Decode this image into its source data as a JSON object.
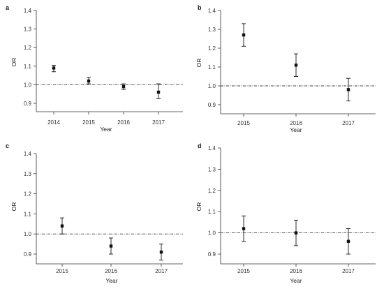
{
  "chart_data": [
    {
      "panel": "a",
      "type": "scatter",
      "xlabel": "Year",
      "ylabel": "OR",
      "categories": [
        "2014",
        "2015",
        "2016",
        "2017"
      ],
      "values": [
        1.09,
        1.02,
        0.99,
        0.96
      ],
      "ci_low": [
        1.07,
        1.005,
        0.975,
        0.925
      ],
      "ci_high": [
        1.105,
        1.04,
        1.005,
        1.005
      ],
      "reference_line": 1.0,
      "ylim": [
        0.85,
        1.4
      ],
      "yticks": [
        "0.9",
        "1.0",
        "1.1",
        "1.2",
        "1.3",
        "1.4"
      ],
      "grid": false
    },
    {
      "panel": "b",
      "type": "scatter",
      "xlabel": "Year",
      "ylabel": "OR",
      "categories": [
        "2015",
        "2016",
        "2017"
      ],
      "values": [
        1.27,
        1.11,
        0.98
      ],
      "ci_low": [
        1.21,
        1.05,
        0.92
      ],
      "ci_high": [
        1.33,
        1.17,
        1.04
      ],
      "reference_line": 1.0,
      "ylim": [
        0.85,
        1.4
      ],
      "yticks": [
        "0.9",
        "1.0",
        "1.1",
        "1.2",
        "1.3",
        "1.4"
      ],
      "grid": false
    },
    {
      "panel": "c",
      "type": "scatter",
      "xlabel": "Year",
      "ylabel": "OR",
      "categories": [
        "2015",
        "2016",
        "2017"
      ],
      "values": [
        1.04,
        0.94,
        0.91
      ],
      "ci_low": [
        1.0,
        0.9,
        0.87
      ],
      "ci_high": [
        1.08,
        0.98,
        0.95
      ],
      "reference_line": 1.0,
      "ylim": [
        0.85,
        1.4
      ],
      "yticks": [
        "0.9",
        "1.0",
        "1.1",
        "1.2",
        "1.3",
        "1.4"
      ],
      "grid": false
    },
    {
      "panel": "d",
      "type": "scatter",
      "xlabel": "Year",
      "ylabel": "OR",
      "categories": [
        "2015",
        "2016",
        "2017"
      ],
      "values": [
        1.02,
        1.0,
        0.96
      ],
      "ci_low": [
        0.96,
        0.94,
        0.9
      ],
      "ci_high": [
        1.08,
        1.06,
        1.02
      ],
      "reference_line": 1.0,
      "ylim": [
        0.85,
        1.4
      ],
      "yticks": [
        "0.9",
        "1.0",
        "1.1",
        "1.2",
        "1.3",
        "1.4"
      ],
      "grid": false
    }
  ]
}
